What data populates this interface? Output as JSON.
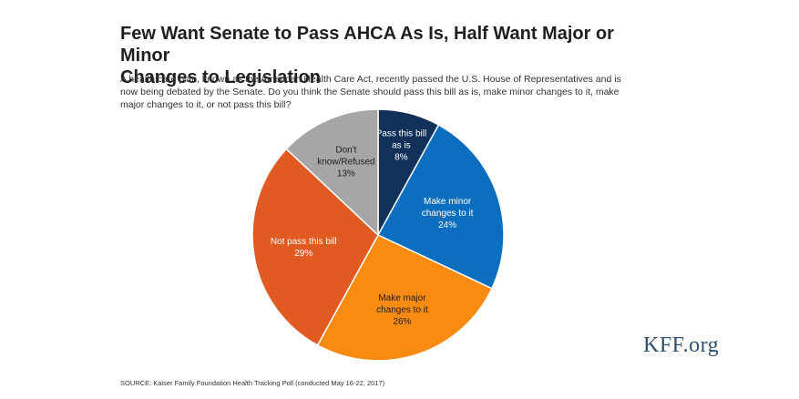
{
  "header": {
    "title_line1": "Few Want Senate to Pass AHCA As Is, Half Want Major or Minor",
    "title_line2": "Changes to Legislation",
    "subtitle_line1": "A health care plan, known as the American Health Care Act, recently passed the U.S. House of Representatives and is",
    "subtitle_line2": "now being debated by the Senate. Do you think the Senate should pass this bill as is, make minor changes to it, make",
    "subtitle_line3": "major changes to it, or not pass this bill?"
  },
  "footer": {
    "source": "SOURCE: Kaiser Family Foundation Health Tracking Poll (conducted May 16-22, 2017)",
    "brand": "KFF.org"
  },
  "chart_data": {
    "type": "pie",
    "unit": "%",
    "slices": [
      {
        "label_lines": [
          "Pass this bill",
          "as is"
        ],
        "value": 8,
        "display": "8%",
        "color": "#12315a",
        "text_color": "#ffffff"
      },
      {
        "label_lines": [
          "Make minor",
          "changes to it"
        ],
        "value": 24,
        "display": "24%",
        "color": "#0c6ebf",
        "text_color": "#ffffff"
      },
      {
        "label_lines": [
          "Make major",
          "changes to it"
        ],
        "value": 26,
        "display": "26%",
        "color": "#f98b13",
        "text_color": "#1f1f1f"
      },
      {
        "label_lines": [
          "Not pass this bill"
        ],
        "value": 29,
        "display": "29%",
        "color": "#e05a22",
        "text_color": "#ffffff"
      },
      {
        "label_lines": [
          "Don't",
          "know/Refused"
        ],
        "value": 13,
        "display": "13%",
        "color": "#a6a6a6",
        "text_color": "#1f1f1f"
      }
    ]
  }
}
